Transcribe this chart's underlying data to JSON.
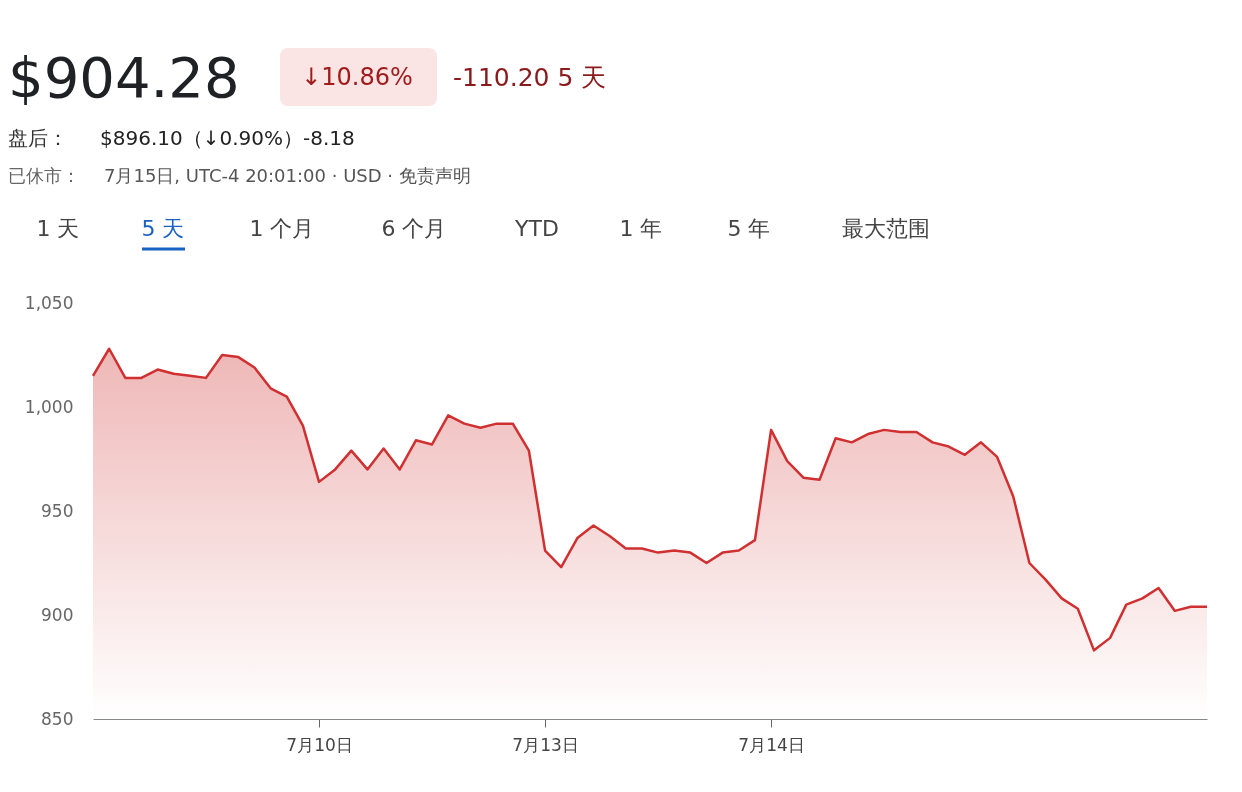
{
  "chart_data": {
    "type": "area",
    "title": "$904.28",
    "annotations": [
      "↓10.86%",
      "-110.20 5 天",
      "盘后：",
      "$896.10（↓0.90%）-8.18",
      "已休市：",
      "7月15日, UTC-4 20:01:00 · USD · 免责声明",
      "1 天",
      "5 天",
      "1 个月",
      "6 个月",
      "YTD",
      "1 年",
      "5 年",
      "最大范围"
    ],
    "categories": [
      null,
      null,
      null,
      null,
      null,
      null,
      null,
      null,
      null,
      null,
      null,
      null,
      null,
      null,
      "7月10日",
      null,
      null,
      null,
      null,
      null,
      null,
      null,
      null,
      null,
      null,
      null,
      null,
      null,
      "7月13日",
      null,
      null,
      null,
      null,
      null,
      null,
      null,
      null,
      null,
      null,
      null,
      null,
      null,
      "7月14日",
      null,
      null,
      null,
      null,
      null,
      null,
      null,
      null,
      null,
      null,
      null,
      null,
      null,
      null,
      null,
      null,
      null,
      null,
      null,
      null,
      null,
      null,
      null,
      null,
      null,
      null,
      null
    ],
    "series": [
      {
        "color": "#d03030",
        "values": [
          1015,
          1028,
          1014,
          1014,
          1018,
          1016,
          1015,
          1014,
          1025,
          1024,
          1019,
          1009,
          1005,
          991,
          964,
          970,
          979,
          970,
          980,
          970,
          984,
          982,
          996,
          992,
          990,
          992,
          992,
          979,
          931,
          923,
          937,
          943,
          938,
          932,
          932,
          930,
          931,
          930,
          925,
          930,
          931,
          936,
          989,
          974,
          966,
          965,
          985,
          983,
          987,
          989,
          988,
          988,
          983,
          981,
          977,
          983,
          976,
          957,
          925,
          917,
          908,
          903,
          883,
          889,
          905,
          908,
          913,
          902,
          904,
          904
        ]
      }
    ],
    "ylim": [
      850,
      1050
    ],
    "yticks": [
      {
        "value": 850,
        "label": "850"
      },
      {
        "value": 900,
        "label": "900"
      },
      {
        "value": 950,
        "label": "950"
      },
      {
        "value": 1000,
        "label": "1,000"
      },
      {
        "value": 1050,
        "label": "1,050"
      }
    ],
    "grid": false
  }
}
